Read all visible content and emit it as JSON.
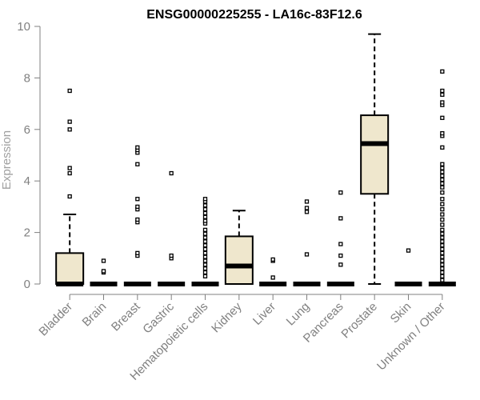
{
  "chart_data": {
    "type": "boxplot",
    "title": "ENSG00000225255 - LA16c-83F12.6",
    "ylabel": "Expression",
    "xlabel": "",
    "ylim": [
      0,
      10
    ],
    "yticks": [
      0,
      2,
      4,
      6,
      8,
      10
    ],
    "colors": {
      "box_fill": "#efe7cd",
      "axis": "#808080",
      "ylabel": "#a0a0a0"
    },
    "categories": [
      "Bladder",
      "Brain",
      "Breast",
      "Gastric",
      "Hematopoietic cells",
      "Kidney",
      "Liver",
      "Lung",
      "Pancreas",
      "Prostate",
      "Skin",
      "Unknown / Other"
    ],
    "boxes": [
      {
        "q1": 0,
        "median": 0,
        "q3": 1.2,
        "whisker_low": 0,
        "whisker_high": 2.7,
        "outliers": [
          3.4,
          4.3,
          4.5,
          6.0,
          6.3,
          7.5
        ]
      },
      {
        "q1": 0,
        "median": 0,
        "q3": 0,
        "whisker_low": 0,
        "whisker_high": 0,
        "outliers": [
          0.45,
          0.5,
          0.9
        ]
      },
      {
        "q1": 0,
        "median": 0,
        "q3": 0,
        "whisker_low": 0,
        "whisker_high": 0,
        "outliers": [
          1.1,
          1.2,
          2.4,
          2.5,
          2.9,
          3.0,
          3.3,
          4.65,
          5.1,
          5.2,
          5.3
        ]
      },
      {
        "q1": 0,
        "median": 0,
        "q3": 0,
        "whisker_low": 0,
        "whisker_high": 0,
        "outliers": [
          1.0,
          1.1,
          4.3
        ]
      },
      {
        "q1": 0,
        "median": 0,
        "q3": 0,
        "whisker_low": 0,
        "whisker_high": 0,
        "outliers": [
          0.3,
          0.45,
          0.6,
          0.75,
          0.9,
          1.05,
          1.2,
          1.35,
          1.5,
          1.65,
          1.8,
          1.95,
          2.1,
          2.35,
          2.45,
          2.6,
          2.75,
          2.9,
          3.05,
          3.2,
          3.3
        ]
      },
      {
        "q1": 0,
        "median": 0.7,
        "q3": 1.85,
        "whisker_low": 0,
        "whisker_high": 2.85,
        "outliers": []
      },
      {
        "q1": 0,
        "median": 0,
        "q3": 0,
        "whisker_low": 0,
        "whisker_high": 0,
        "outliers": [
          0.25,
          0.9,
          0.95
        ]
      },
      {
        "q1": 0,
        "median": 0,
        "q3": 0,
        "whisker_low": 0,
        "whisker_high": 0,
        "outliers": [
          1.15,
          2.8,
          2.95,
          3.2
        ]
      },
      {
        "q1": 0,
        "median": 0,
        "q3": 0,
        "whisker_low": 0,
        "whisker_high": 0,
        "outliers": [
          0.75,
          1.1,
          1.55,
          2.55,
          3.55
        ]
      },
      {
        "q1": 3.5,
        "median": 5.45,
        "q3": 6.55,
        "whisker_low": 0,
        "whisker_high": 9.7,
        "outliers": []
      },
      {
        "q1": 0,
        "median": 0,
        "q3": 0,
        "whisker_low": 0,
        "whisker_high": 0,
        "outliers": [
          1.3
        ]
      },
      {
        "q1": 0,
        "median": 0,
        "q3": 0,
        "whisker_low": 0,
        "whisker_high": 0,
        "outliers": [
          0.15,
          0.3,
          0.45,
          0.6,
          0.75,
          0.9,
          1.05,
          1.2,
          1.35,
          1.5,
          1.65,
          1.8,
          1.95,
          2.1,
          2.3,
          2.5,
          2.7,
          2.9,
          3.1,
          3.3,
          3.55,
          3.75,
          3.9,
          4.05,
          4.2,
          4.35,
          4.5,
          4.65,
          5.3,
          5.75,
          5.85,
          6.45,
          6.95,
          7.05,
          7.35,
          7.5,
          8.25
        ]
      }
    ]
  }
}
